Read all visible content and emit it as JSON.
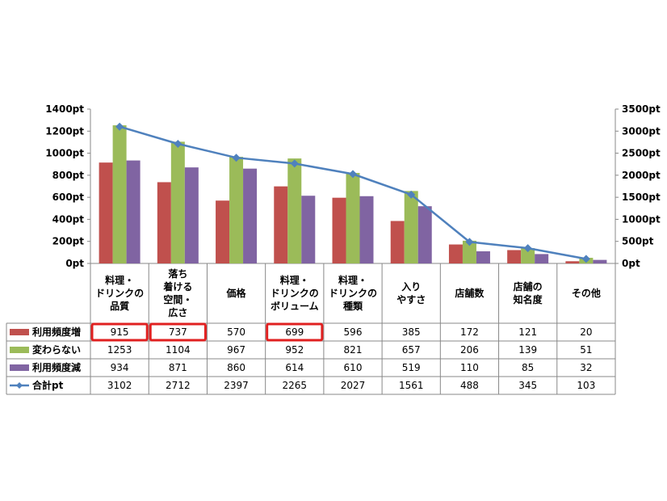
{
  "chart_data": {
    "type": "bar",
    "categories": [
      [
        "料理・",
        "ドリンクの",
        "品質"
      ],
      [
        "落ち",
        "着ける",
        "空間・",
        "広さ"
      ],
      [
        "価格"
      ],
      [
        "料理・",
        "ドリンクの",
        "ボリューム"
      ],
      [
        "料理・",
        "ドリンクの",
        "種類"
      ],
      [
        "入り",
        "やすさ"
      ],
      [
        "店舗数"
      ],
      [
        "店舗の",
        "知名度"
      ],
      [
        "その他"
      ]
    ],
    "series": [
      {
        "name": "利用頻度増",
        "type": "bar",
        "axis": "left",
        "color": "#C0504D",
        "values": [
          915,
          737,
          570,
          699,
          596,
          385,
          172,
          121,
          20
        ]
      },
      {
        "name": "変わらない",
        "type": "bar",
        "axis": "left",
        "color": "#9BBB59",
        "values": [
          1253,
          1104,
          967,
          952,
          821,
          657,
          206,
          139,
          51
        ]
      },
      {
        "name": "利用頻度減",
        "type": "bar",
        "axis": "left",
        "color": "#8064A2",
        "values": [
          934,
          871,
          860,
          614,
          610,
          519,
          110,
          85,
          32
        ]
      },
      {
        "name": "合計pt",
        "type": "line",
        "axis": "right",
        "color": "#4F81BD",
        "values": [
          3102,
          2712,
          2397,
          2265,
          2027,
          1561,
          488,
          345,
          103
        ]
      }
    ],
    "y_left": {
      "min": 0,
      "max": 1400,
      "step": 200,
      "ticks": [
        "0pt",
        "200pt",
        "400pt",
        "600pt",
        "800pt",
        "1000pt",
        "1200pt",
        "1400pt"
      ]
    },
    "y_right": {
      "min": 0,
      "max": 3500,
      "step": 500,
      "ticks": [
        "0pt",
        "500pt",
        "1000pt",
        "1500pt",
        "2000pt",
        "2500pt",
        "3000pt",
        "3500pt"
      ]
    },
    "grid": false,
    "legend": "data-table-left",
    "highlighted_cells": [
      {
        "series": 0,
        "index": 0
      },
      {
        "series": 0,
        "index": 1
      },
      {
        "series": 0,
        "index": 3
      }
    ],
    "highlight_color": "#E02020"
  }
}
